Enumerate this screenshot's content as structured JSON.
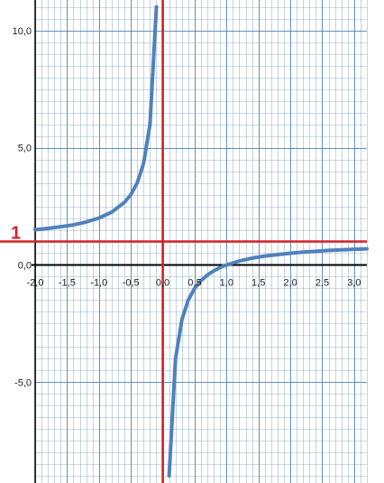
{
  "chart_data": {
    "type": "line",
    "xlim": [
      -2.0,
      3.2
    ],
    "ylim": [
      -9.3,
      11.3
    ],
    "grid": true,
    "x_grid_step": 0.1,
    "y_grid_step": 0.5,
    "x_ticks": [
      {
        "value": -2.0,
        "label": "-2,0"
      },
      {
        "value": -1.5,
        "label": "-1,5"
      },
      {
        "value": -1.0,
        "label": "-1,0"
      },
      {
        "value": -0.5,
        "label": "-0,5"
      },
      {
        "value": 0.0,
        "label": "0,0"
      },
      {
        "value": 0.5,
        "label": "0,5"
      },
      {
        "value": 1.0,
        "label": "1,0"
      },
      {
        "value": 1.5,
        "label": "1,5"
      },
      {
        "value": 2.0,
        "label": "2,0"
      },
      {
        "value": 2.5,
        "label": "2,5"
      },
      {
        "value": 3.0,
        "label": "3,0"
      }
    ],
    "y_ticks": [
      {
        "value": 10.0,
        "label": "10,0"
      },
      {
        "value": 5.0,
        "label": "5,0"
      },
      {
        "value": 0.0,
        "label": "0,0"
      },
      {
        "value": -5.0,
        "label": "-5,0"
      }
    ],
    "series": [
      {
        "color": "#4f81bd",
        "segments": [
          [
            [
              -2.0,
              1.5
            ],
            [
              -1.8,
              1.56
            ],
            [
              -1.6,
              1.63
            ],
            [
              -1.4,
              1.71
            ],
            [
              -1.2,
              1.83
            ],
            [
              -1.0,
              2.0
            ],
            [
              -0.8,
              2.25
            ],
            [
              -0.6,
              2.67
            ],
            [
              -0.5,
              3.0
            ],
            [
              -0.4,
              3.5
            ],
            [
              -0.3,
              4.33
            ],
            [
              -0.2,
              6.0
            ],
            [
              -0.1,
              11.0
            ]
          ],
          [
            [
              0.1,
              -9.0
            ],
            [
              0.2,
              -4.0
            ],
            [
              0.3,
              -2.33
            ],
            [
              0.4,
              -1.5
            ],
            [
              0.5,
              -1.0
            ],
            [
              0.6,
              -0.67
            ],
            [
              0.7,
              -0.43
            ],
            [
              0.8,
              -0.25
            ],
            [
              0.9,
              -0.11
            ],
            [
              1.0,
              0.0
            ],
            [
              1.2,
              0.17
            ],
            [
              1.4,
              0.29
            ],
            [
              1.6,
              0.38
            ],
            [
              1.8,
              0.44
            ],
            [
              2.0,
              0.5
            ],
            [
              2.2,
              0.55
            ],
            [
              2.4,
              0.58
            ],
            [
              2.6,
              0.62
            ],
            [
              2.8,
              0.64
            ],
            [
              3.0,
              0.67
            ],
            [
              3.2,
              0.69
            ]
          ]
        ]
      }
    ],
    "asymptotes": [
      {
        "orientation": "horizontal",
        "value": 1.0,
        "label": "1",
        "color": "#d2232a"
      },
      {
        "orientation": "vertical",
        "value": 0.0,
        "color": "#d2232a"
      }
    ],
    "colors": {
      "grid": "#4a7ea8",
      "axis": "#000000",
      "curve": "#4f81bd",
      "asymptote": "#d2232a"
    }
  }
}
